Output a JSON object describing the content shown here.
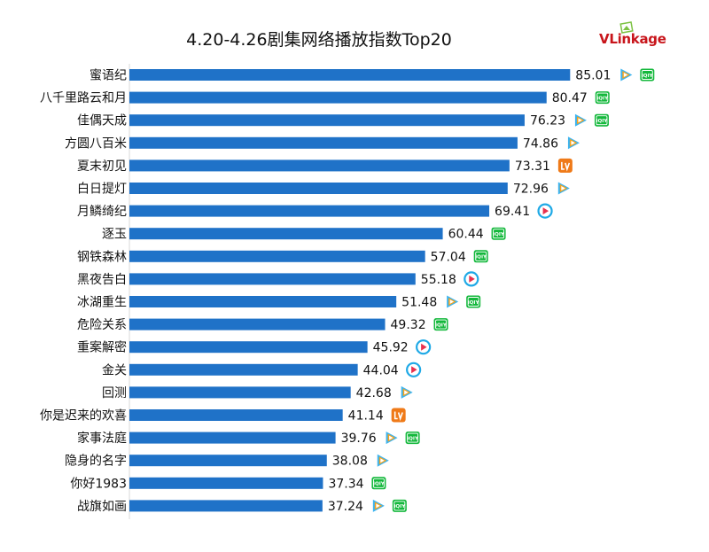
{
  "logo": {
    "prefix": "V",
    "text": "Linkage"
  },
  "chart_data": {
    "type": "bar",
    "orientation": "horizontal",
    "title": "4.20-4.26剧集网络播放指数Top20",
    "color": "#1f72c8",
    "categories": [
      "蜜语纪",
      "八千里路云和月",
      "佳偶天成",
      "方圆八百米",
      "夏末初见",
      "白日提灯",
      "月鳞绮纪",
      "逐玉",
      "钢铁森林",
      "黑夜告白",
      "冰湖重生",
      "危险关系",
      "重案解密",
      "金关",
      "回测",
      "你是迟来的欢喜",
      "家事法庭",
      "隐身的名字",
      "你好1983",
      "战旗如画"
    ],
    "values": [
      85.01,
      80.47,
      76.23,
      74.86,
      73.31,
      72.96,
      69.41,
      60.44,
      57.04,
      55.18,
      51.48,
      49.32,
      45.92,
      44.04,
      42.68,
      41.14,
      39.76,
      38.08,
      37.34,
      37.24
    ],
    "value_labels": [
      "85.01",
      "80.47",
      "76.23",
      "74.86",
      "73.31",
      "72.96",
      "69.41",
      "60.44",
      "57.04",
      "55.18",
      "51.48",
      "49.32",
      "45.92",
      "44.04",
      "42.68",
      "41.14",
      "39.76",
      "38.08",
      "37.34",
      "37.24"
    ],
    "platforms": [
      [
        "tencent-video-icon",
        "iqiyi-icon"
      ],
      [
        "iqiyi-icon"
      ],
      [
        "tencent-video-icon",
        "iqiyi-icon"
      ],
      [
        "tencent-video-icon"
      ],
      [
        "mango-tv-icon"
      ],
      [
        "tencent-video-icon"
      ],
      [
        "youku-icon"
      ],
      [
        "iqiyi-icon"
      ],
      [
        "iqiyi-icon"
      ],
      [
        "youku-icon"
      ],
      [
        "tencent-video-icon",
        "iqiyi-icon"
      ],
      [
        "iqiyi-icon"
      ],
      [
        "youku-icon"
      ],
      [
        "youku-icon"
      ],
      [
        "tencent-video-icon"
      ],
      [
        "mango-tv-icon"
      ],
      [
        "tencent-video-icon",
        "iqiyi-icon"
      ],
      [
        "tencent-video-icon"
      ],
      [
        "iqiyi-icon"
      ],
      [
        "tencent-video-icon",
        "iqiyi-icon"
      ]
    ],
    "platform_colors": {
      "tencent-video-icon": [
        "#3cb4f0",
        "#f7a21b",
        "#41c66b"
      ],
      "iqiyi-icon": "#14b83c",
      "mango-tv-icon": "#ef7a18",
      "youku-icon": "#1fa9e6"
    },
    "iqiyi_badge_text": "iQIY",
    "xlim": [
      0,
      100
    ]
  }
}
